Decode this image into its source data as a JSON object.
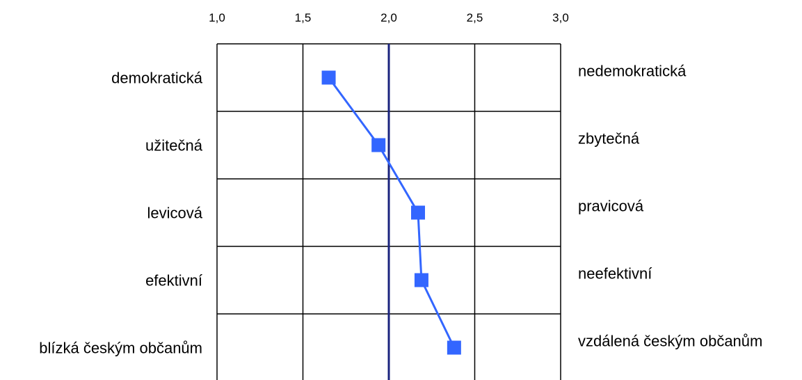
{
  "chart_data": {
    "type": "line",
    "orientation": "horizontal-semantic-differential",
    "xlim": [
      1.0,
      3.0
    ],
    "x_ticks": [
      "1,0",
      "1,5",
      "2,0",
      "2,5",
      "3,0"
    ],
    "x_tick_values": [
      1.0,
      1.5,
      2.0,
      2.5,
      3.0
    ],
    "reference_line": 2.0,
    "rows": [
      {
        "left": "demokratická",
        "right": "nedemokratická",
        "value": 1.65
      },
      {
        "left": "užitečná",
        "right": "zbytečná",
        "value": 1.94
      },
      {
        "left": "levicová",
        "right": "pravicová",
        "value": 2.17
      },
      {
        "left": "efektivní",
        "right": "neefektivní",
        "value": 2.19
      },
      {
        "left": "blízká českým občanům",
        "right": "vzdálená českým občanům",
        "value": 2.38
      }
    ],
    "grid": true,
    "series_color": "#3366ff",
    "reference_color": "#1a237e"
  }
}
